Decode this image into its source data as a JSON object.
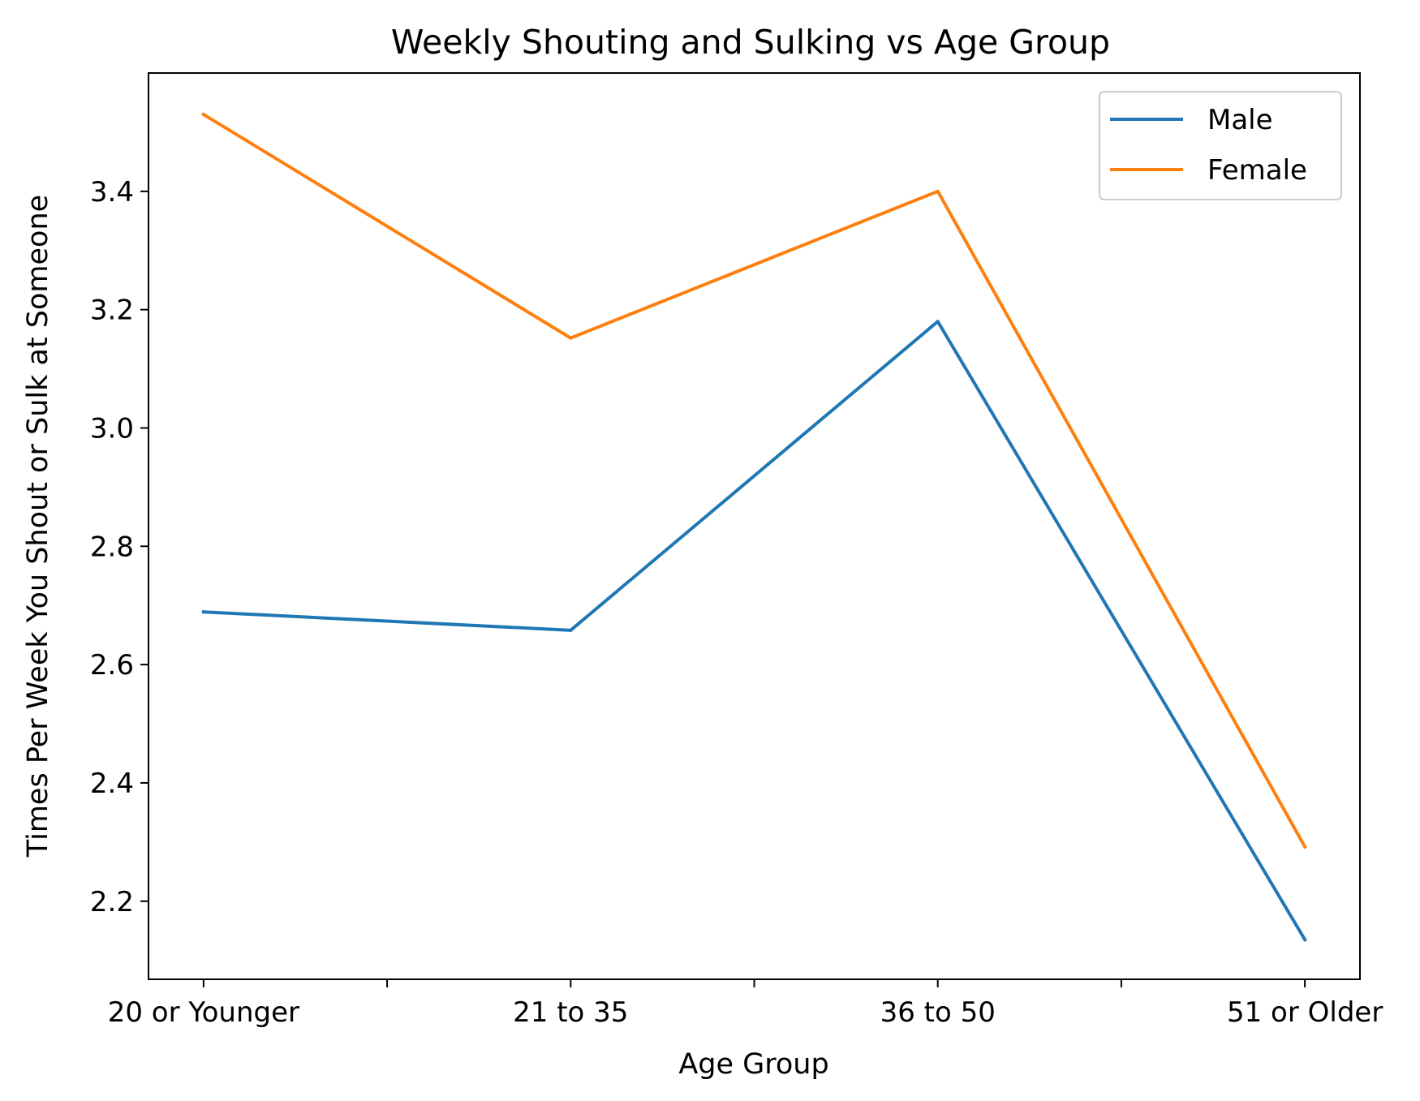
{
  "chart_data": {
    "type": "line",
    "title": "Weekly Shouting and Sulking vs Age Group",
    "xlabel": "Age Group",
    "ylabel": "Times Per Week You Shout or Sulk at Someone",
    "categories": [
      "20 or Younger",
      "21 to 35",
      "36 to 50",
      "51 or Older"
    ],
    "series": [
      {
        "name": "Male",
        "color": "#1f77b4",
        "values": [
          2.689,
          2.658,
          3.18,
          2.135
        ]
      },
      {
        "name": "Female",
        "color": "#ff7f0e",
        "values": [
          3.53,
          3.152,
          3.4,
          2.292
        ]
      }
    ],
    "ylim": [
      2.068,
      3.6
    ],
    "yticks": [
      2.2,
      2.4,
      2.6,
      2.8,
      3.0,
      3.2,
      3.4
    ],
    "xlim": [
      -0.15,
      3.15
    ],
    "grid": false,
    "legend": "top-right"
  }
}
